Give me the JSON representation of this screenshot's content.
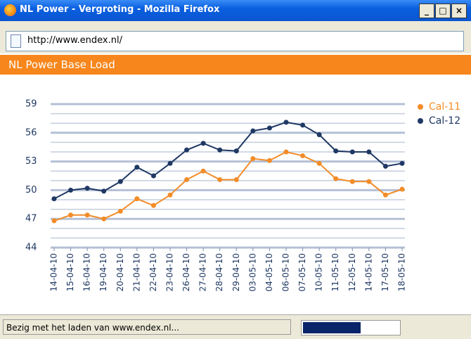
{
  "window": {
    "title": "NL Power - Vergroting - Mozilla Firefox"
  },
  "address_bar": {
    "url": "http://www.endex.nl/"
  },
  "status_bar": {
    "text": "Bezig met het laden van www.endex.nl..."
  },
  "chart_data": {
    "type": "line",
    "title": "NL Power Base Load",
    "categories": [
      "14-04-10",
      "15-04-10",
      "16-04-10",
      "19-04-10",
      "20-04-10",
      "21-04-10",
      "22-04-10",
      "23-04-10",
      "26-04-10",
      "27-04-10",
      "28-04-10",
      "29-04-10",
      "03-05-10",
      "04-05-10",
      "06-05-10",
      "07-05-10",
      "10-05-10",
      "11-05-10",
      "12-05-10",
      "14-05-10",
      "17-05-10",
      "18-05-10"
    ],
    "series": [
      {
        "name": "Cal-11",
        "color": "#f28c28",
        "values": [
          46.8,
          47.4,
          47.4,
          47.0,
          47.8,
          49.1,
          48.4,
          49.5,
          51.1,
          52.0,
          51.1,
          51.1,
          53.3,
          53.1,
          54.0,
          53.6,
          52.8,
          51.2,
          50.9,
          50.9,
          49.5,
          50.1
        ]
      },
      {
        "name": "Cal-12",
        "color": "#1f3864",
        "values": [
          49.1,
          50.0,
          50.2,
          49.9,
          50.9,
          52.4,
          51.5,
          52.8,
          54.2,
          54.9,
          54.2,
          54.1,
          56.2,
          56.5,
          57.1,
          56.8,
          55.8,
          54.1,
          54.0,
          54.0,
          52.5,
          52.8
        ]
      }
    ],
    "ylim": [
      44,
      59
    ],
    "yticks": [
      44,
      47,
      50,
      53,
      56,
      59
    ],
    "minor_yticks": [
      45,
      46,
      48,
      49,
      51,
      52,
      54,
      55,
      57,
      58
    ],
    "grid": true,
    "legend": "top-right"
  }
}
